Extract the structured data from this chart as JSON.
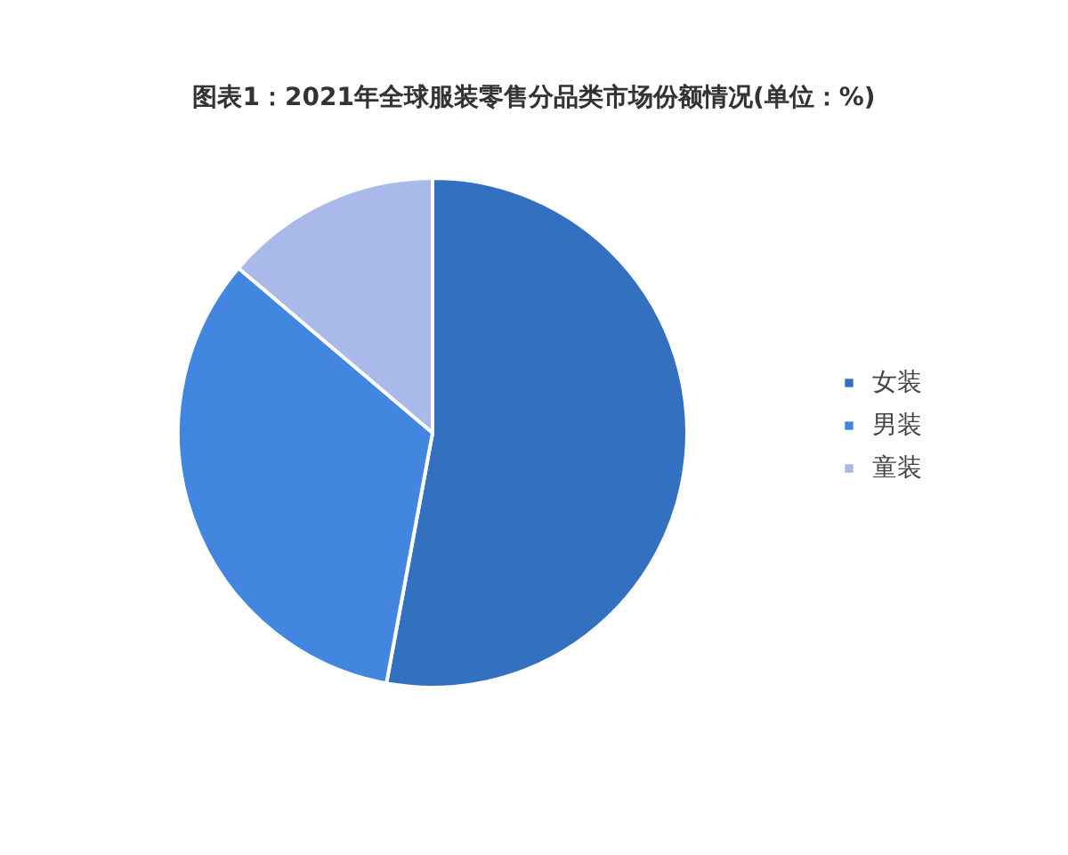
{
  "chart_data": {
    "type": "pie",
    "title": "图表1：2021年全球服装零售分品类市场份额情况(单位：%)",
    "categories": [
      "女装",
      "男装",
      "童装"
    ],
    "values": [
      52.9,
      33.3,
      13.8
    ],
    "colors": [
      "#3470c0",
      "#4286df",
      "#a9b9ea"
    ],
    "legend": "right"
  }
}
